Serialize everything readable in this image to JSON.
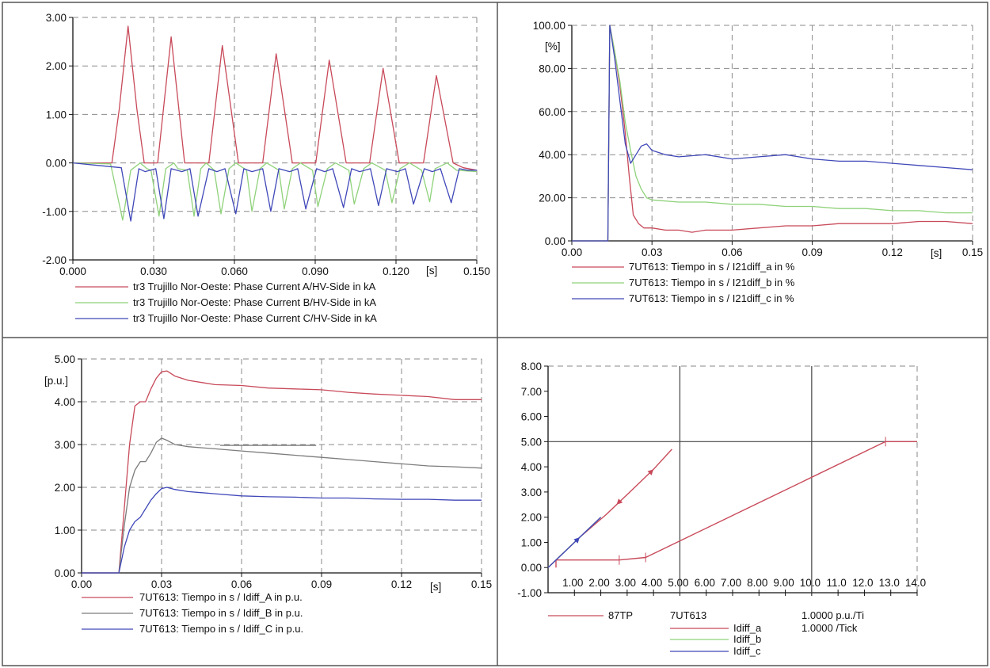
{
  "colors": {
    "red": "#c84a5a",
    "green": "#8fd27a",
    "blue": "#4048b8",
    "gray": "#7c7c7c",
    "grid": "#8a8a8a",
    "frame": "#555555",
    "ink": "#111111"
  },
  "chart_data": [
    {
      "type": "line",
      "xlabel": "[s]",
      "ylabel": "",
      "xlim": [
        0,
        0.15
      ],
      "ylim": [
        -2,
        3
      ],
      "x_ticks": [
        "0.000",
        "0.030",
        "0.060",
        "0.090",
        "0.120",
        "0.150"
      ],
      "y_ticks": [
        "-2.00",
        "-1.00",
        "0.00",
        "1.00",
        "2.00",
        "3.00"
      ],
      "grid": true,
      "legend_position": "bottom",
      "series": [
        {
          "name": "tr3 Trujillo Nor-Oeste: Phase Current A/HV-Side in kA",
          "color_key": "red",
          "x": [
            0,
            0.0145,
            0.0172,
            0.0205,
            0.0238,
            0.0265,
            0.0315,
            0.0365,
            0.0415,
            0.0455,
            0.0505,
            0.0555,
            0.0615,
            0.0652,
            0.0705,
            0.0755,
            0.0815,
            0.0852,
            0.0902,
            0.0952,
            0.1015,
            0.1052,
            0.1102,
            0.1152,
            0.1212,
            0.1252,
            0.1302,
            0.135,
            0.1412,
            0.145,
            0.15
          ],
          "y": [
            0,
            0,
            1.1,
            2.82,
            1.1,
            0,
            0,
            2.6,
            0,
            0,
            0,
            2.42,
            0,
            0,
            0,
            2.25,
            0,
            0,
            0,
            2.12,
            0,
            0,
            0,
            1.95,
            0,
            0,
            0,
            1.8,
            0,
            -0.1,
            -0.15
          ]
        },
        {
          "name": "tr3 Trujillo Nor-Oeste: Phase Current B/HV-Side in kA",
          "color_key": "green",
          "x": [
            0,
            0.014,
            0.0185,
            0.0215,
            0.025,
            0.0275,
            0.029,
            0.032,
            0.0345,
            0.0375,
            0.039,
            0.0425,
            0.045,
            0.0475,
            0.0495,
            0.0525,
            0.055,
            0.058,
            0.0605,
            0.0645,
            0.0665,
            0.0695,
            0.072,
            0.0765,
            0.0785,
            0.0815,
            0.0845,
            0.089,
            0.091,
            0.0945,
            0.0975,
            0.1025,
            0.1045,
            0.108,
            0.111,
            0.116,
            0.1185,
            0.1215,
            0.125,
            0.1295,
            0.1325,
            0.1345,
            0.139,
            0.1425,
            0.15
          ],
          "y": [
            0,
            -0.02,
            -1.18,
            -0.15,
            0,
            -0.12,
            -0.15,
            -1.1,
            -0.12,
            0,
            -0.12,
            -0.15,
            -1.1,
            -0.12,
            0,
            -0.15,
            -1.05,
            -0.12,
            0,
            -0.15,
            -1.0,
            -0.12,
            0,
            -0.15,
            -0.95,
            -0.12,
            0,
            -0.15,
            -0.9,
            -0.12,
            0,
            -0.15,
            -0.85,
            -0.12,
            0,
            -0.15,
            -0.82,
            -0.12,
            0,
            -0.15,
            -0.8,
            -0.12,
            0,
            -0.15,
            -0.18
          ]
        },
        {
          "name": "tr3 Trujillo Nor-Oeste: Phase Current C/HV-Side in kA",
          "color_key": "blue",
          "x": [
            0,
            0.018,
            0.0215,
            0.0245,
            0.0268,
            0.0308,
            0.0338,
            0.0365,
            0.0405,
            0.0435,
            0.0465,
            0.0505,
            0.0535,
            0.0565,
            0.0605,
            0.0635,
            0.0665,
            0.0705,
            0.0735,
            0.0765,
            0.0805,
            0.0835,
            0.0865,
            0.0905,
            0.0935,
            0.0965,
            0.1005,
            0.1035,
            0.1065,
            0.1105,
            0.1135,
            0.1165,
            0.1205,
            0.1235,
            0.1265,
            0.1305,
            0.1335,
            0.1365,
            0.1405,
            0.1435,
            0.1465,
            0.15
          ],
          "y": [
            0,
            -0.1,
            -1.2,
            -0.12,
            -0.18,
            -0.12,
            -1.15,
            -0.12,
            -0.18,
            -0.12,
            -1.1,
            -0.12,
            -0.18,
            -0.12,
            -1.05,
            -0.12,
            -0.18,
            -0.12,
            -1.0,
            -0.12,
            -0.18,
            -0.12,
            -0.95,
            -0.12,
            -0.18,
            -0.12,
            -0.92,
            -0.12,
            -0.18,
            -0.12,
            -0.88,
            -0.12,
            -0.18,
            -0.12,
            -0.85,
            -0.12,
            -0.18,
            -0.12,
            -0.82,
            -0.12,
            -0.15,
            -0.15
          ]
        }
      ]
    },
    {
      "type": "line",
      "xlabel": "[s]",
      "ylabel": "[%]",
      "xlim": [
        0,
        0.15
      ],
      "ylim": [
        0,
        100
      ],
      "x_ticks": [
        "0.00",
        "0.03",
        "0.06",
        "0.09",
        "0.12",
        "0.15"
      ],
      "y_ticks": [
        "0.00",
        "20.00",
        "40.00",
        "60.00",
        "80.00",
        "100.00"
      ],
      "grid": true,
      "legend_position": "bottom",
      "series": [
        {
          "name": "7UT613: Tiempo  in s / I21diff_a in %",
          "color_key": "red",
          "x": [
            0,
            0.0135,
            0.0142,
            0.016,
            0.018,
            0.02,
            0.0215,
            0.023,
            0.025,
            0.027,
            0.03,
            0.035,
            0.04,
            0.045,
            0.05,
            0.06,
            0.07,
            0.08,
            0.09,
            0.1,
            0.11,
            0.12,
            0.13,
            0.14,
            0.15
          ],
          "y": [
            0,
            0,
            100,
            88,
            72,
            50,
            30,
            12,
            8,
            6,
            6,
            5,
            5,
            4,
            5,
            5,
            6,
            7,
            7,
            8,
            8,
            8,
            9,
            9,
            8
          ]
        },
        {
          "name": "7UT613: Tiempo  in s / I21diff_b in %",
          "color_key": "green",
          "x": [
            0,
            0.0135,
            0.0142,
            0.016,
            0.018,
            0.02,
            0.022,
            0.024,
            0.026,
            0.028,
            0.03,
            0.04,
            0.05,
            0.06,
            0.07,
            0.08,
            0.09,
            0.1,
            0.11,
            0.12,
            0.13,
            0.14,
            0.15
          ],
          "y": [
            0,
            0,
            100,
            88,
            74,
            55,
            42,
            30,
            24,
            20,
            19,
            18,
            18,
            17,
            17,
            16,
            16,
            15,
            15,
            14,
            14,
            13,
            13
          ]
        },
        {
          "name": "7UT613: Tiempo  in s / I21diff_c in %",
          "color_key": "blue",
          "x": [
            0,
            0.0135,
            0.0142,
            0.016,
            0.018,
            0.02,
            0.022,
            0.024,
            0.026,
            0.028,
            0.03,
            0.035,
            0.04,
            0.05,
            0.06,
            0.07,
            0.08,
            0.09,
            0.1,
            0.11,
            0.12,
            0.13,
            0.14,
            0.15
          ],
          "y": [
            0,
            0,
            100,
            85,
            65,
            45,
            36,
            40,
            44,
            45,
            42,
            40,
            39,
            40,
            38,
            39,
            40,
            38,
            37,
            37,
            36,
            35,
            34,
            33
          ]
        }
      ]
    },
    {
      "type": "line",
      "xlabel": "[s]",
      "ylabel": "[p.u.]",
      "xlim": [
        0,
        0.15
      ],
      "ylim": [
        0,
        5
      ],
      "x_ticks": [
        "0.00",
        "0.03",
        "0.06",
        "0.09",
        "0.12",
        "0.15"
      ],
      "y_ticks": [
        "0.00",
        "1.00",
        "2.00",
        "3.00",
        "4.00",
        "5.00"
      ],
      "grid": true,
      "legend_position": "bottom",
      "series": [
        {
          "name": "7UT613: Tiempo  in s / Idiff_A in p.u.",
          "color_key": "red",
          "x": [
            0,
            0.014,
            0.016,
            0.018,
            0.02,
            0.022,
            0.024,
            0.026,
            0.028,
            0.03,
            0.032,
            0.035,
            0.04,
            0.045,
            0.05,
            0.06,
            0.07,
            0.08,
            0.09,
            0.1,
            0.11,
            0.12,
            0.13,
            0.14,
            0.15
          ],
          "y": [
            0,
            0,
            1.5,
            3.0,
            3.9,
            4.0,
            4.0,
            4.3,
            4.55,
            4.7,
            4.72,
            4.6,
            4.5,
            4.45,
            4.4,
            4.38,
            4.32,
            4.3,
            4.28,
            4.22,
            4.18,
            4.15,
            4.12,
            4.05,
            4.05
          ]
        },
        {
          "name": "7UT613: Tiempo  in s / Idiff_B in p.u.",
          "color_key": "gray",
          "x": [
            0,
            0.014,
            0.016,
            0.018,
            0.02,
            0.022,
            0.024,
            0.026,
            0.028,
            0.03,
            0.032,
            0.035,
            0.04,
            0.05,
            0.06,
            0.07,
            0.08,
            0.09,
            0.1,
            0.11,
            0.12,
            0.13,
            0.14,
            0.15
          ],
          "y": [
            0,
            0,
            1.1,
            2.0,
            2.4,
            2.6,
            2.6,
            2.8,
            3.05,
            3.15,
            3.1,
            3.0,
            2.95,
            2.9,
            2.85,
            2.8,
            2.75,
            2.7,
            2.65,
            2.6,
            2.55,
            2.5,
            2.48,
            2.45
          ]
        },
        {
          "name": "7UT613: Tiempo  in s / Idiff_C in p.u.",
          "color_key": "blue",
          "x": [
            0,
            0.014,
            0.016,
            0.018,
            0.02,
            0.022,
            0.024,
            0.026,
            0.028,
            0.03,
            0.032,
            0.035,
            0.04,
            0.05,
            0.06,
            0.07,
            0.08,
            0.09,
            0.1,
            0.11,
            0.12,
            0.13,
            0.14,
            0.15
          ],
          "y": [
            0,
            0,
            0.6,
            1.0,
            1.2,
            1.3,
            1.5,
            1.7,
            1.85,
            1.97,
            2.0,
            1.95,
            1.9,
            1.85,
            1.8,
            1.78,
            1.77,
            1.75,
            1.75,
            1.73,
            1.72,
            1.72,
            1.7,
            1.7
          ]
        }
      ],
      "extra_lines": [
        {
          "color_key": "gray",
          "x": [
            0.052,
            0.088
          ],
          "y": [
            2.98,
            2.98
          ]
        }
      ]
    },
    {
      "type": "line",
      "xlabel": "",
      "ylabel": "",
      "xlim": [
        0,
        14
      ],
      "ylim": [
        -1,
        8
      ],
      "x_ticks": [
        "1.00",
        "2.00",
        "3.00",
        "4.00",
        "5.00",
        "6.00",
        "7.00",
        "8.00",
        "9.00",
        "10.0",
        "11.0",
        "12.0",
        "13.0",
        "14.0"
      ],
      "y_ticks": [
        "-1.00",
        "0.00",
        "1.00",
        "2.00",
        "3.00",
        "4.00",
        "5.00",
        "6.00",
        "7.00",
        "8.00"
      ],
      "grid": true,
      "legend_position": "bottom",
      "reference_lines": {
        "x": [
          5,
          10
        ],
        "y": [
          5
        ]
      },
      "series": [
        {
          "name": "87TP",
          "color_key": "red",
          "x": [
            0.3,
            0.3,
            2.7,
            3.7,
            12.8,
            14.0
          ],
          "y": [
            0.0,
            0.3,
            0.3,
            0.4,
            5.0,
            5.0
          ]
        },
        {
          "name": "Idiff_a",
          "color_key": "red",
          "x": [
            0.0,
            1.2,
            2.2,
            3.0,
            4.0,
            4.7
          ],
          "y": [
            0.0,
            1.2,
            2.1,
            2.9,
            3.9,
            4.7
          ]
        },
        {
          "name": "Idiff_b",
          "color_key": "green",
          "x": [
            0.0,
            1.2,
            2.0
          ],
          "y": [
            0.0,
            1.2,
            2.0
          ]
        },
        {
          "name": "Idiff_c",
          "color_key": "blue",
          "x": [
            0.0,
            0.6,
            1.3,
            2.0
          ],
          "y": [
            0.0,
            0.6,
            1.3,
            2.0
          ]
        }
      ]
    }
  ],
  "legend4": {
    "relay": "7UT613",
    "scale1": "1.0000 p.u./Ti",
    "scale2": "1.0000 /Tick"
  }
}
